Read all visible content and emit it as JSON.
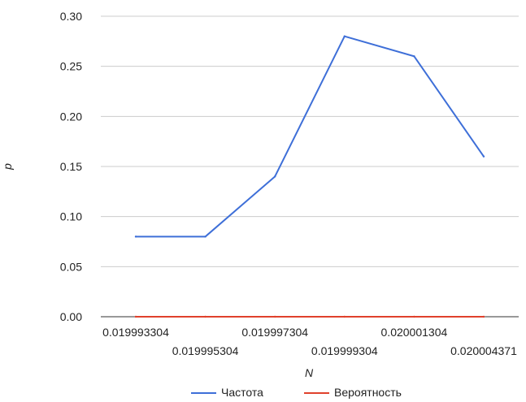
{
  "chart_data": {
    "type": "line",
    "x": [
      "0.019993304",
      "0.019995304",
      "0.019997304",
      "0.019999304",
      "0.020001304",
      "0.020004371"
    ],
    "series": [
      {
        "name": "Частота",
        "values": [
          0.08,
          0.08,
          0.14,
          0.28,
          0.26,
          0.16
        ],
        "color": "#3e6fd8"
      },
      {
        "name": "Вероятность",
        "values": [
          0.0,
          0.0,
          0.0,
          0.0,
          0.0,
          0.0
        ],
        "color": "#e0412c"
      }
    ],
    "y_ticks": [
      "0.00",
      "0.05",
      "0.10",
      "0.15",
      "0.20",
      "0.25",
      "0.30"
    ],
    "ylim": [
      0,
      0.3
    ],
    "xlabel": "N",
    "ylabel": "p",
    "grid": true,
    "legend_position": "bottom"
  }
}
